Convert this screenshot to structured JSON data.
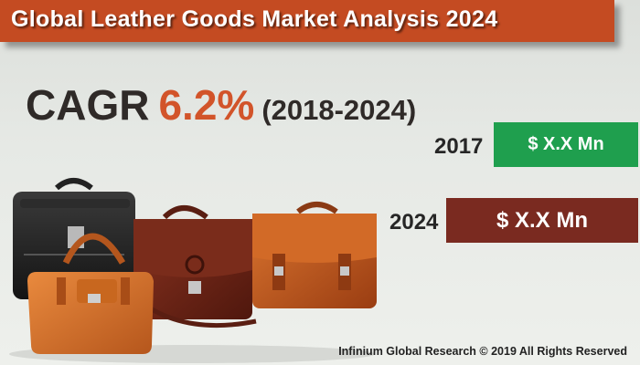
{
  "banner": {
    "title": "Global Leather Goods Market Analysis 2024"
  },
  "cagr": {
    "label": "CAGR",
    "value": "6.2%",
    "period": "(2018-2024)"
  },
  "market_values": [
    {
      "year": "2017",
      "value": "$ X.X Mn",
      "color": "#1f9f4e"
    },
    {
      "year": "2024",
      "value": "$ X.X Mn",
      "color": "#7a2a20"
    }
  ],
  "colors": {
    "banner": "#c44b22",
    "accent": "#d2542a"
  },
  "image": {
    "subject": "leather-bags-icon"
  },
  "footer": {
    "copyright": "Infinium Global Research © 2019 All Rights Reserved"
  }
}
